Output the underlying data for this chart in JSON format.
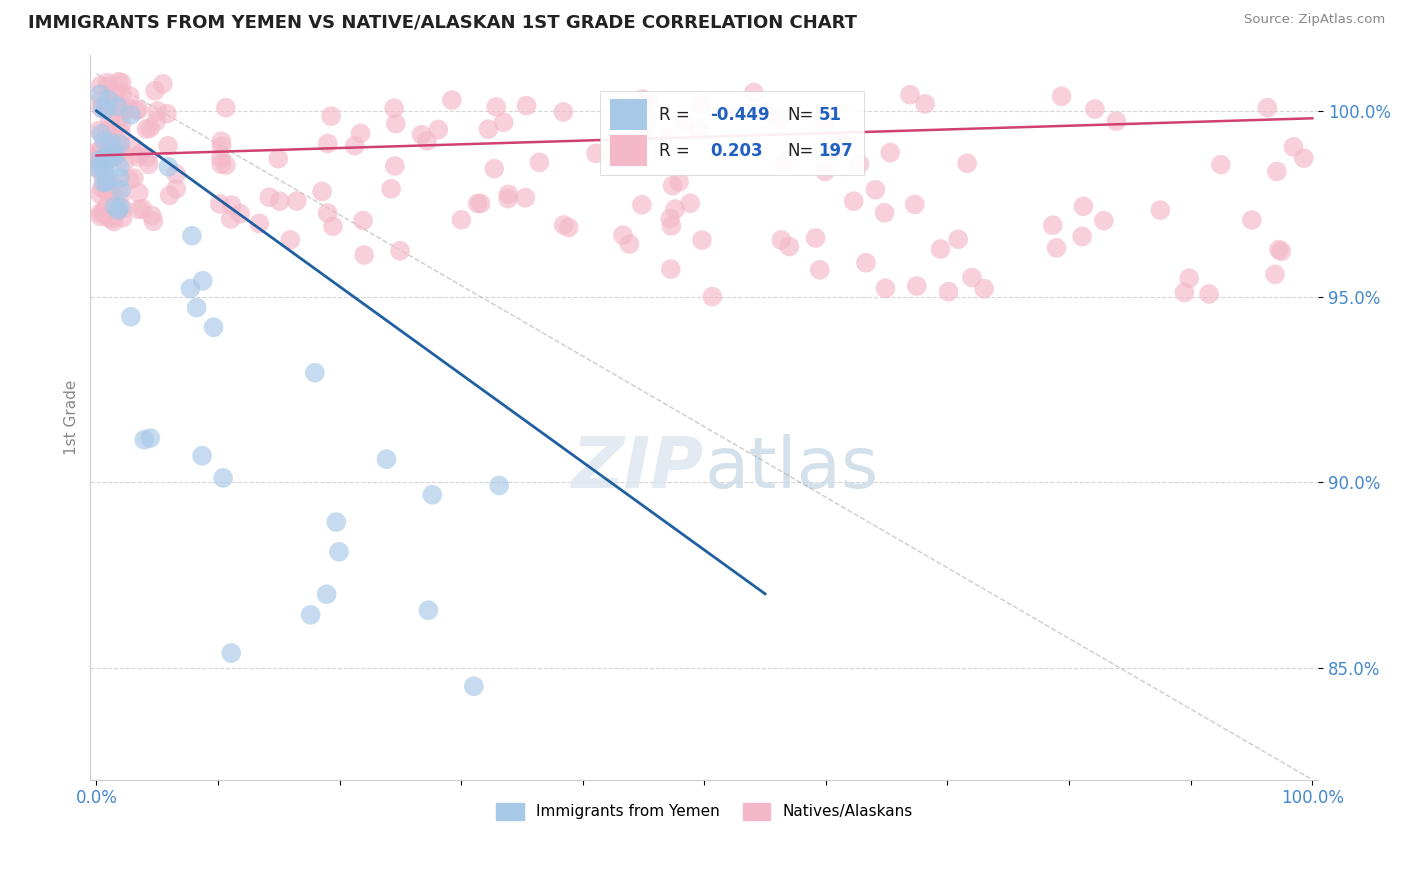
{
  "title": "IMMIGRANTS FROM YEMEN VS NATIVE/ALASKAN 1ST GRADE CORRELATION CHART",
  "source_text": "Source: ZipAtlas.com",
  "ylabel": "1st Grade",
  "watermark_zip": "ZIP",
  "watermark_atlas": "atlas",
  "legend_entries": [
    "Immigrants from Yemen",
    "Natives/Alaskans"
  ],
  "r_blue": -0.449,
  "n_blue": 51,
  "r_pink": 0.203,
  "n_pink": 197,
  "blue_color": "#a8c8e8",
  "pink_color": "#f4b8c8",
  "blue_line_color": "#2060a0",
  "pink_line_color": "#d04070",
  "xlim": [
    0.0,
    1.0
  ],
  "ylim": [
    0.82,
    1.015
  ],
  "yticks": [
    0.85,
    0.9,
    0.95,
    1.0
  ],
  "ytick_labels": [
    "85.0%",
    "90.0%",
    "95.0%",
    "100.0%"
  ],
  "xtick_labels": [
    "0.0%",
    "",
    "",
    "",
    "",
    "",
    "",
    "",
    "",
    "",
    "100.0%"
  ]
}
